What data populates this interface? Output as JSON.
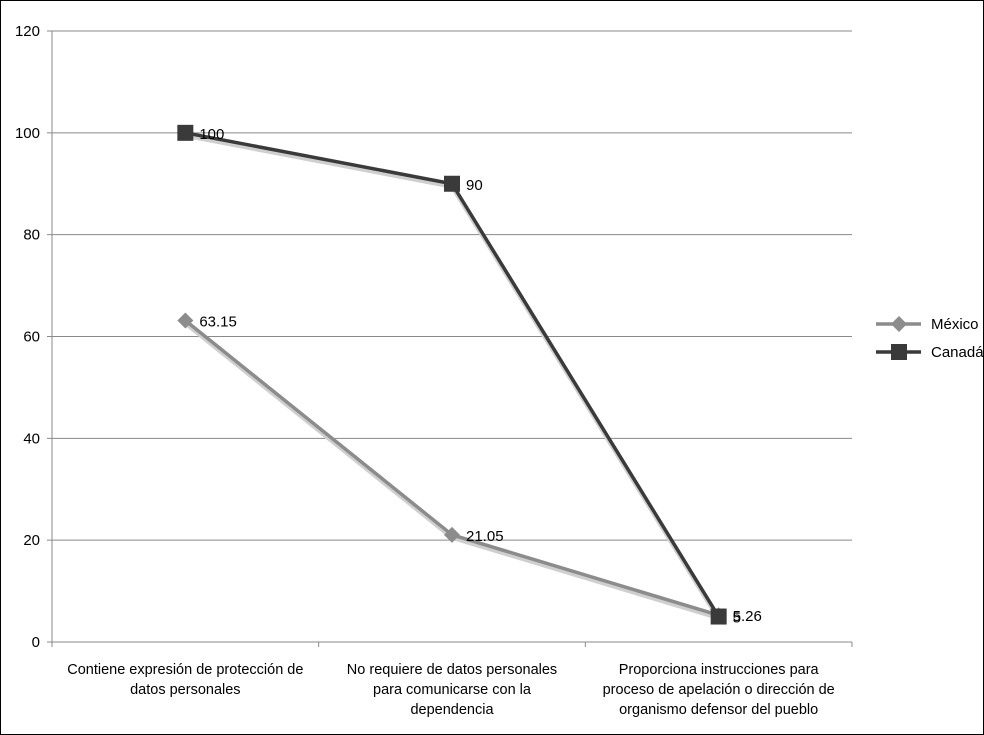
{
  "chart_data": {
    "type": "line",
    "title": "",
    "xlabel": "",
    "ylabel": "",
    "ylim": [
      0,
      120
    ],
    "yticks": [
      0,
      20,
      40,
      60,
      80,
      100,
      120
    ],
    "grid": true,
    "legend_position": "right",
    "categories": [
      [
        "Contiene expresión de protección de",
        "datos personales"
      ],
      [
        "No requiere de datos personales",
        "para comunicarse con la",
        "dependencia"
      ],
      [
        "Proporciona instrucciones para",
        "proceso de apelación o dirección de",
        "organismo defensor del pueblo"
      ]
    ],
    "series": [
      {
        "name": "México",
        "values": [
          63.15,
          21.05,
          5.26
        ],
        "data_labels": [
          "63.15",
          "21.05",
          "5.26"
        ],
        "color": "#8c8c8c",
        "marker": "diamond"
      },
      {
        "name": "Canadá",
        "values": [
          100,
          90,
          5
        ],
        "data_labels": [
          "100",
          "90",
          "5"
        ],
        "color": "#3a3a3a",
        "marker": "square"
      }
    ]
  }
}
